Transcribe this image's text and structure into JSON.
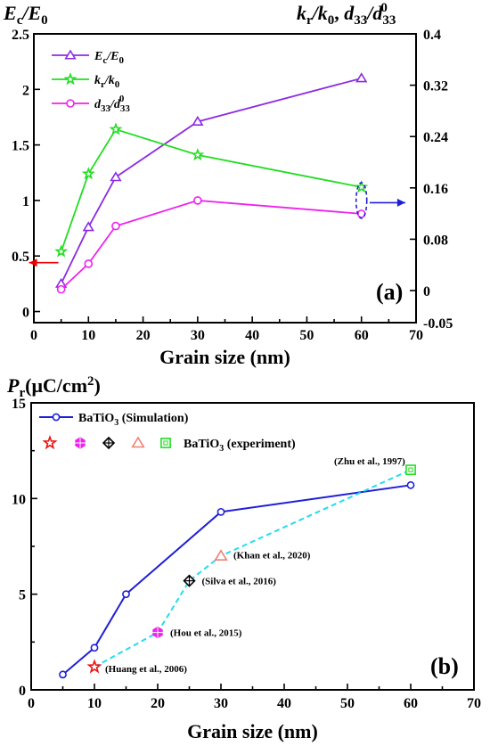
{
  "chart_data": [
    {
      "type": "line",
      "panel_label": "(a)",
      "xlabel": "Grain size (nm)",
      "ylabel_left": "Ec/E0",
      "ylabel_right": "kr/k0,  d33/d033",
      "xlim": [
        0,
        70
      ],
      "xticks": [
        0,
        10,
        20,
        30,
        40,
        50,
        60,
        70
      ],
      "ylim_left": [
        -0.1,
        2.5
      ],
      "yticks_left": [
        0,
        0.5,
        1,
        1.5,
        2,
        2.5
      ],
      "ylim_right": [
        -0.05,
        0.4
      ],
      "yticks_right": [
        "-0.05",
        "0",
        "0.08",
        "0.16",
        "0.24",
        "0.32",
        "0.4"
      ],
      "grid": false,
      "legend_position": "top-left",
      "series": [
        {
          "name": "Ec/E0",
          "color": "#8b2be2",
          "marker": "triangle",
          "axis": "left",
          "x": [
            5,
            10,
            15,
            30,
            60
          ],
          "y": [
            0.25,
            0.76,
            1.21,
            1.71,
            2.1
          ]
        },
        {
          "name": "kr/k0",
          "color": "#22dd22",
          "marker": "star",
          "axis": "left",
          "x": [
            5,
            10,
            15,
            30,
            60
          ],
          "y": [
            0.54,
            1.24,
            1.64,
            1.41,
            1.12
          ]
        },
        {
          "name": "d33/d033",
          "color": "#ee22ee",
          "marker": "circle",
          "axis": "left",
          "x": [
            5,
            10,
            15,
            30,
            60
          ],
          "y": [
            0.2,
            0.43,
            0.77,
            1.0,
            0.88
          ]
        }
      ],
      "arrows": [
        {
          "color": "#ee0000",
          "direction": "left",
          "x": 4.5,
          "y_left": 0.44
        },
        {
          "color": "#1f1fd8",
          "direction": "right",
          "x": 63,
          "y_left": 0.98
        }
      ]
    },
    {
      "type": "line",
      "panel_label": "(b)",
      "xlabel": "Grain size (nm)",
      "ylabel": "Pr(μC/cm2)",
      "xlim": [
        0,
        70
      ],
      "xticks": [
        0,
        10,
        20,
        30,
        40,
        50,
        60,
        70
      ],
      "ylim": [
        0,
        15
      ],
      "yticks": [
        0,
        5,
        10,
        15
      ],
      "grid": false,
      "legend_position": "top-left",
      "series": [
        {
          "name": "BaTiO3 (Simulation)",
          "color": "#1f1fd8",
          "marker": "circle",
          "x": [
            5,
            10,
            15,
            30,
            60
          ],
          "y": [
            0.8,
            2.2,
            5.0,
            9.3,
            10.7
          ]
        },
        {
          "name": "BaTiO3 (experiment)",
          "color": "#22ddee",
          "line": "dashed",
          "x": [
            10,
            20,
            25,
            30,
            60
          ],
          "y": [
            1.2,
            3.0,
            5.7,
            7.0,
            11.5
          ]
        }
      ],
      "experiment_points": [
        {
          "label": "(Huang et al., 2006)",
          "x": 10,
          "y": 1.2,
          "marker": "star",
          "color": "#ee1111"
        },
        {
          "label": "(Hou et al., 2015)",
          "x": 20,
          "y": 3.0,
          "marker": "hexagon",
          "color": "#ee22ee"
        },
        {
          "label": "(Silva et al., 2016)",
          "x": 25,
          "y": 5.7,
          "marker": "diamond",
          "color": "#000000"
        },
        {
          "label": "(Khan et al., 2020)",
          "x": 30,
          "y": 7.0,
          "marker": "triangle",
          "color": "#f08070"
        },
        {
          "label": "(Zhu et al., 1997)",
          "x": 60,
          "y": 11.5,
          "marker": "square",
          "color": "#22dd22"
        }
      ]
    }
  ]
}
